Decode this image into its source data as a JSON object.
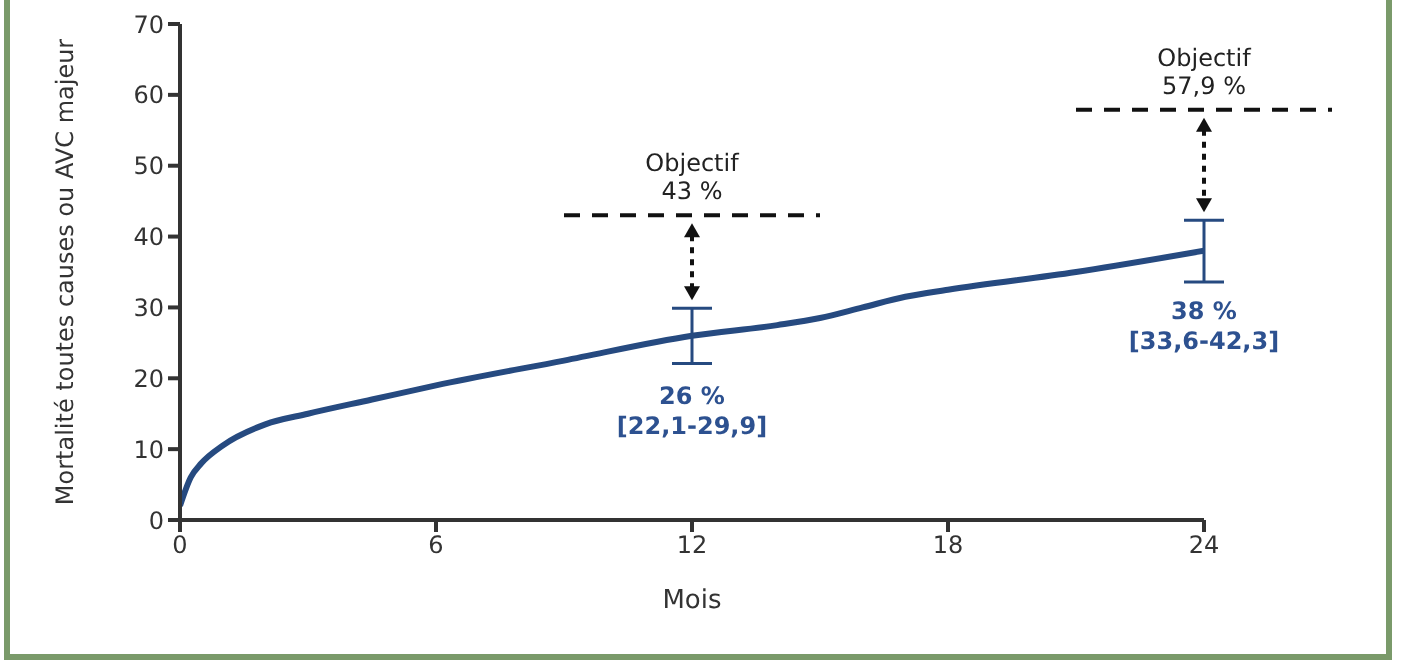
{
  "chart_data": {
    "type": "line",
    "xlabel": "Mois",
    "ylabel": "Mortalité toutes causes ou AVC majeur",
    "xlim": [
      0,
      24
    ],
    "xticks": [
      0,
      6,
      12,
      18,
      24
    ],
    "ylim": [
      0,
      70
    ],
    "yticks": [
      0,
      10,
      20,
      30,
      40,
      50,
      60,
      70
    ],
    "x": [
      0,
      0.25,
      0.5,
      1,
      2,
      3,
      4.5,
      6,
      9,
      12,
      14,
      15,
      16,
      17,
      18,
      21,
      24
    ],
    "series": [
      {
        "color": "#264a80",
        "values": [
          2,
          6,
          8,
          10.5,
          13.5,
          15,
          17,
          19,
          22.5,
          26,
          27.5,
          28.5,
          30,
          31.5,
          32.5,
          35,
          38
        ],
        "errors": [
          null,
          null,
          null,
          null,
          null,
          null,
          null,
          null,
          null,
          [
            22.1,
            29.9
          ],
          null,
          null,
          null,
          null,
          null,
          null,
          [
            33.6,
            42.3
          ]
        ]
      }
    ],
    "ref_lines": [
      {
        "axis": "y",
        "value": 43,
        "label": "Objectif\n43 %",
        "line_style": "dashed",
        "color": "#111111"
      },
      {
        "axis": "y",
        "value": 57.9,
        "label": "Objectif\n57,9 %",
        "line_style": "dashed",
        "color": "#111111"
      }
    ],
    "annotations": [
      {
        "text": "26 %\n[22,1-29,9]",
        "x": 12,
        "y": 26
      },
      {
        "text": "38 %\n[33,6-42,3]",
        "x": 24,
        "y": 38
      }
    ],
    "grid": false,
    "legend": false
  }
}
